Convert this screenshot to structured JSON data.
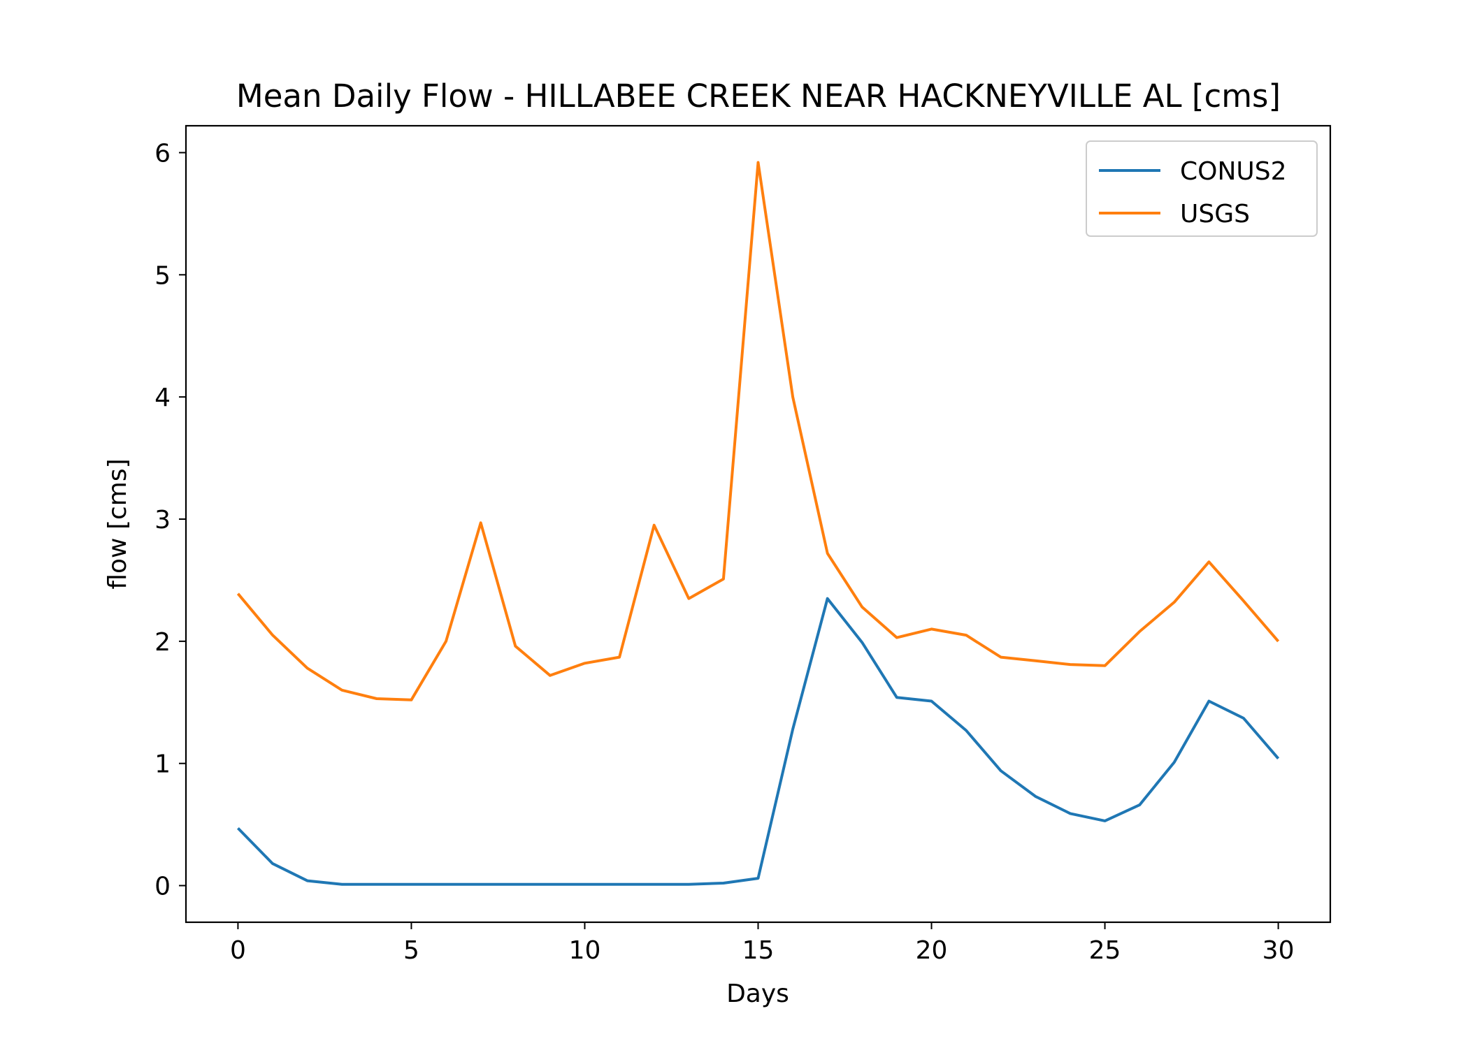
{
  "chart_data": {
    "type": "line",
    "title": "Mean Daily Flow - HILLABEE CREEK NEAR HACKNEYVILLE AL [cms]",
    "xlabel": "Days",
    "ylabel": "flow [cms]",
    "xlim": [
      -1.5,
      31.5
    ],
    "ylim": [
      -0.3,
      6.22
    ],
    "xticks": [
      0,
      5,
      10,
      15,
      20,
      25,
      30
    ],
    "yticks": [
      0,
      1,
      2,
      3,
      4,
      5,
      6
    ],
    "grid": false,
    "legend_position": "top-right",
    "x": [
      0,
      1,
      2,
      3,
      4,
      5,
      6,
      7,
      8,
      9,
      10,
      11,
      12,
      13,
      14,
      15,
      16,
      17,
      18,
      19,
      20,
      21,
      22,
      23,
      24,
      25,
      26,
      27,
      28,
      29,
      30
    ],
    "series": [
      {
        "name": "CONUS2",
        "color": "#1f77b4",
        "values": [
          0.47,
          0.18,
          0.04,
          0.01,
          0.01,
          0.01,
          0.01,
          0.01,
          0.01,
          0.01,
          0.01,
          0.01,
          0.01,
          0.01,
          0.02,
          0.06,
          1.28,
          2.35,
          1.99,
          1.54,
          1.51,
          1.27,
          0.94,
          0.73,
          0.59,
          0.53,
          0.66,
          1.01,
          1.51,
          1.37,
          1.04
        ]
      },
      {
        "name": "USGS",
        "color": "#ff7f0e",
        "values": [
          2.39,
          2.05,
          1.78,
          1.6,
          1.53,
          1.52,
          2.0,
          2.97,
          1.96,
          1.72,
          1.82,
          1.87,
          2.95,
          2.35,
          2.51,
          5.92,
          4.0,
          2.72,
          2.28,
          2.03,
          2.1,
          2.05,
          1.87,
          1.84,
          1.81,
          1.8,
          2.08,
          2.32,
          2.65,
          2.33,
          2.0
        ]
      }
    ]
  }
}
